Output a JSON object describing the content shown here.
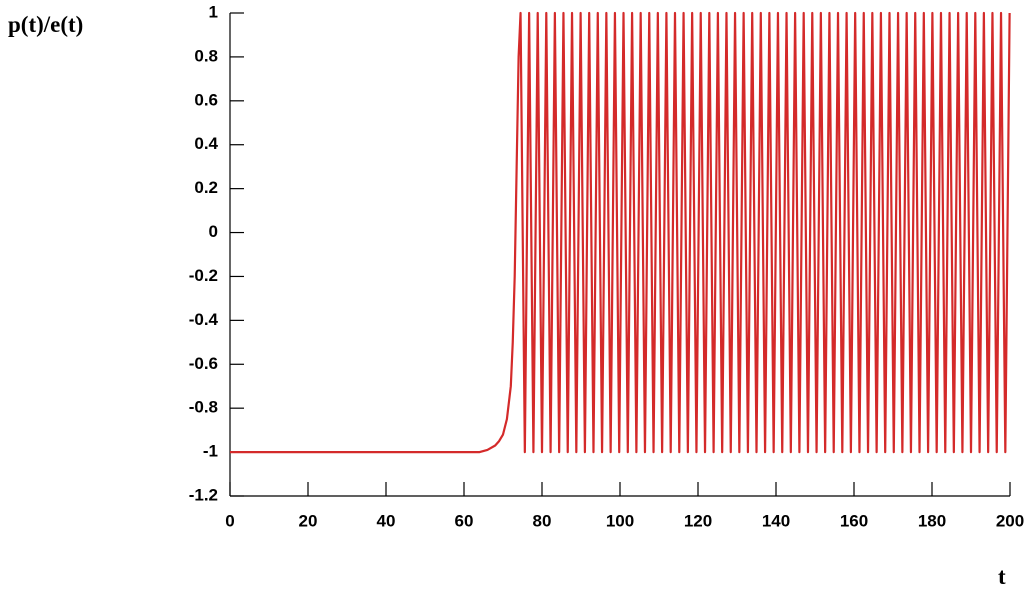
{
  "chart_data": {
    "type": "line",
    "ylabel": "p(t)/e(t)",
    "xlabel": "t",
    "color": "#d42a2a",
    "xlim": [
      0,
      200
    ],
    "xticks": [
      0,
      20,
      40,
      60,
      80,
      100,
      120,
      140,
      160,
      180,
      200
    ],
    "ylim": [
      -1.2,
      1
    ],
    "yticks": [
      1,
      0.8,
      0.6,
      0.4,
      0.2,
      0,
      -0.2,
      -0.4,
      -0.6,
      -0.8,
      -1,
      -1.2
    ],
    "x": [
      0,
      20,
      40,
      60,
      64,
      66,
      68,
      69,
      70,
      71,
      72,
      72.5,
      73,
      73.5,
      74,
      74.5,
      75.6,
      76.7,
      77.8,
      78.9,
      80.0,
      81.1,
      82.2,
      83.3,
      84.4,
      85.5,
      86.6,
      87.7,
      88.8,
      89.9,
      91.0,
      92.1,
      93.2,
      94.3,
      95.4,
      96.5,
      97.6,
      98.7,
      99.8,
      100.9,
      102.0,
      103.1,
      104.2,
      105.3,
      106.4,
      107.5,
      108.6,
      109.7,
      110.8,
      111.9,
      113.0,
      114.1,
      115.2,
      116.3,
      117.4,
      118.5,
      119.6,
      120.7,
      121.8,
      122.9,
      124.0,
      125.1,
      126.2,
      127.3,
      128.4,
      129.5,
      130.6,
      131.7,
      132.8,
      133.9,
      135.0,
      136.1,
      137.2,
      138.3,
      139.4,
      140.5,
      141.6,
      142.7,
      143.8,
      144.9,
      146.0,
      147.1,
      148.2,
      149.3,
      150.4,
      151.5,
      152.6,
      153.7,
      154.8,
      155.9,
      157.0,
      158.1,
      159.2,
      160.3,
      161.4,
      162.5,
      163.6,
      164.7,
      165.8,
      166.9,
      168.0,
      169.1,
      170.2,
      171.3,
      172.4,
      173.5,
      174.6,
      175.7,
      176.8,
      177.9,
      179.0,
      180.1,
      181.2,
      182.3,
      183.4,
      184.5,
      185.6,
      186.7,
      187.8,
      188.9,
      190.0,
      191.1,
      192.2,
      193.3,
      194.4,
      195.5,
      196.6,
      197.7,
      198.8,
      199.9
    ],
    "values": [
      -1,
      -1,
      -1,
      -1,
      -1,
      -0.99,
      -0.97,
      -0.95,
      -0.92,
      -0.85,
      -0.7,
      -0.5,
      -0.2,
      0.3,
      0.8,
      1,
      -1,
      1,
      -1,
      1,
      -1,
      1,
      -1,
      1,
      -1,
      1,
      -1,
      1,
      -1,
      1,
      -1,
      1,
      -1,
      1,
      -1,
      1,
      -1,
      1,
      -1,
      1,
      -1,
      1,
      -1,
      1,
      -1,
      1,
      -1,
      1,
      -1,
      1,
      -1,
      1,
      -1,
      1,
      -1,
      1,
      -1,
      1,
      -1,
      1,
      -1,
      1,
      -1,
      1,
      -1,
      1,
      -1,
      1,
      -1,
      1,
      -1,
      1,
      -1,
      1,
      -1,
      1,
      -1,
      1,
      -1,
      1,
      -1,
      1,
      -1,
      1,
      -1,
      1,
      -1,
      1,
      -1,
      1,
      -1,
      1,
      -1,
      1,
      -1,
      1,
      -1,
      1,
      -1,
      1,
      -1,
      1,
      -1,
      1,
      -1,
      1,
      -1,
      1,
      -1,
      1,
      -1,
      1,
      -1,
      1,
      -1,
      1,
      -1,
      1,
      -1,
      1,
      -1,
      1,
      -1,
      1,
      -1,
      1,
      -1,
      1,
      -1,
      1
    ]
  }
}
